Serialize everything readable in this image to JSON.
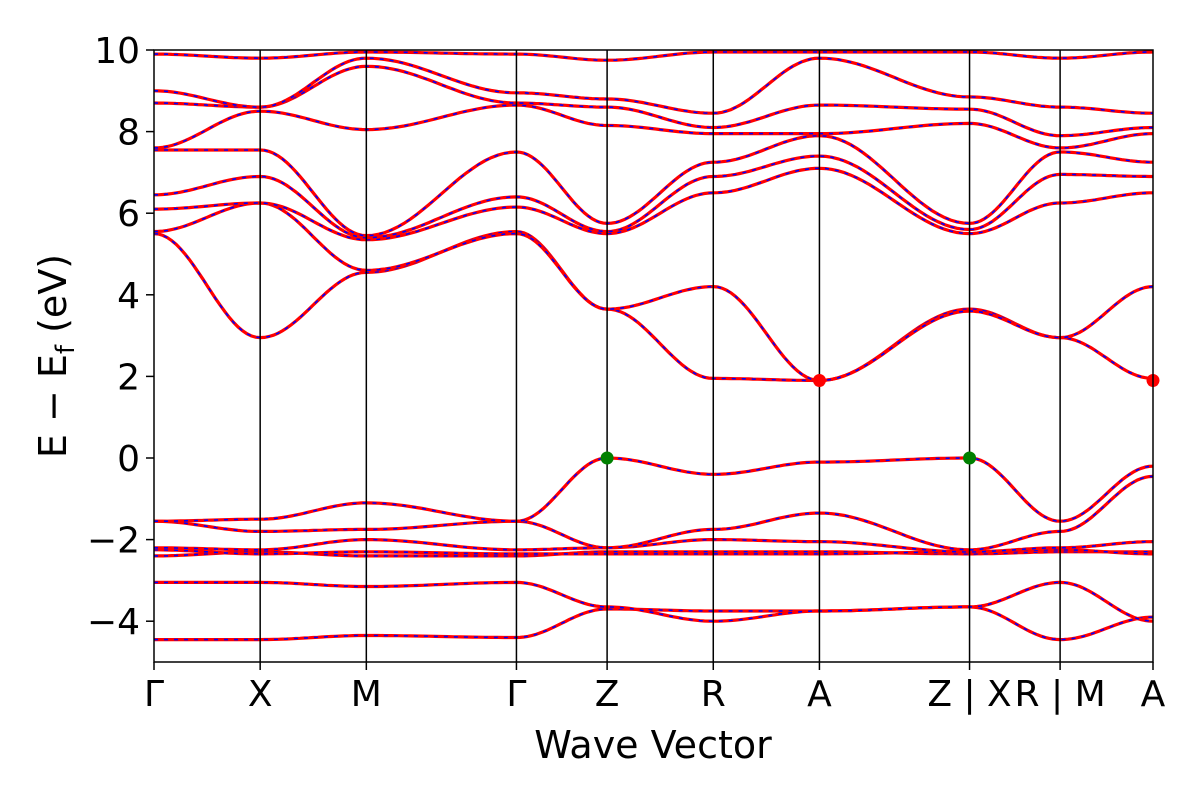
{
  "chart_data": {
    "type": "line",
    "title": "",
    "xlabel": "Wave Vector",
    "ylabel_main": "E − E",
    "ylabel_sub": "f",
    "ylabel_tail": " (eV)",
    "ylim": [
      -5,
      10
    ],
    "yticks": [
      -4,
      -2,
      0,
      2,
      4,
      6,
      8,
      10
    ],
    "ytick_labels": [
      "−4",
      "−2",
      "0",
      "2",
      "4",
      "6",
      "8",
      "10"
    ],
    "kpath": [
      {
        "label": "Γ",
        "pos": 0.0
      },
      {
        "label": "X",
        "pos": 1.0
      },
      {
        "label": "M",
        "pos": 2.0
      },
      {
        "label": "Γ",
        "pos": 3.414
      },
      {
        "label": "Z",
        "pos": 4.268
      },
      {
        "label": "R",
        "pos": 5.268
      },
      {
        "label": "A",
        "pos": 6.268
      },
      {
        "label": "Z | X",
        "pos": 7.682
      },
      {
        "label": "R | M",
        "pos": 8.535
      },
      {
        "label": "A",
        "pos": 9.41
      }
    ],
    "grid": false,
    "colors": {
      "band": "#ff0000",
      "band_dash": "#0000ff",
      "vbm": "#008000",
      "cbm": "#ff0000",
      "axis": "#000000"
    },
    "markers": [
      {
        "name": "VBM",
        "x": 4.268,
        "y": 0.0,
        "color": "#008000"
      },
      {
        "name": "VBM",
        "x": 7.682,
        "y": 0.0,
        "color": "#008000"
      },
      {
        "name": "CBM",
        "x": 6.268,
        "y": 1.9,
        "color": "#ff0000"
      },
      {
        "name": "CBM",
        "x": 9.41,
        "y": 1.9,
        "color": "#ff0000"
      }
    ],
    "segment_ends": [
      1.0,
      2.0,
      3.414,
      4.268,
      5.268,
      6.268,
      7.682,
      8.535,
      9.41
    ],
    "bands": [
      [
        -4.45,
        -4.45,
        -4.35,
        -4.4,
        -3.7,
        -3.75,
        -3.75,
        -3.65,
        -4.45,
        -3.9,
        -4.35,
        -3.75
      ],
      [
        -3.05,
        -3.05,
        -3.15,
        -3.05,
        -3.65,
        -4.0,
        -3.75,
        -3.65,
        -3.05,
        -4.0,
        -3.15,
        -3.75
      ],
      [
        -2.4,
        -2.3,
        -2.4,
        -2.4,
        -2.3,
        -2.3,
        -2.3,
        -2.35,
        -2.3,
        -2.3,
        -2.3,
        -2.3
      ],
      [
        -2.25,
        -2.35,
        -2.3,
        -2.35,
        -2.35,
        -2.35,
        -2.35,
        -2.3,
        -2.25,
        -2.35,
        -2.35,
        -2.35
      ],
      [
        -2.2,
        -2.25,
        -2.0,
        -2.25,
        -2.2,
        -2.0,
        -2.05,
        -2.3,
        -2.2,
        -2.05,
        -2.05,
        -2.05
      ],
      [
        -1.55,
        -1.8,
        -1.75,
        -1.55,
        -2.2,
        -1.75,
        -1.35,
        -2.25,
        -1.8,
        -0.45,
        -1.1,
        -1.35
      ],
      [
        -1.55,
        -1.5,
        -1.1,
        -1.55,
        0.0,
        -0.4,
        -0.1,
        0.0,
        -1.55,
        -0.2,
        -0.05,
        -0.1
      ],
      [
        5.5,
        2.95,
        4.55,
        5.55,
        3.65,
        1.95,
        1.9,
        3.65,
        2.95,
        1.95,
        4.55,
        1.9
      ],
      [
        5.55,
        6.25,
        4.6,
        5.5,
        3.65,
        4.2,
        1.9,
        3.6,
        2.95,
        4.2,
        4.55,
        1.9
      ],
      [
        6.1,
        6.25,
        5.35,
        6.15,
        5.5,
        6.5,
        7.1,
        5.5,
        6.25,
        6.5,
        5.3,
        7.1
      ],
      [
        6.45,
        6.9,
        5.4,
        6.4,
        5.55,
        6.9,
        7.4,
        5.6,
        6.95,
        6.9,
        5.4,
        7.4
      ],
      [
        7.55,
        7.55,
        5.45,
        7.5,
        5.75,
        7.25,
        7.9,
        5.75,
        7.5,
        7.25,
        7.9,
        7.9
      ],
      [
        7.6,
        8.5,
        8.05,
        8.65,
        8.15,
        7.95,
        7.95,
        8.2,
        7.6,
        7.95,
        8.05,
        7.95
      ],
      [
        8.7,
        8.6,
        9.6,
        8.7,
        8.6,
        8.1,
        8.65,
        8.55,
        7.9,
        8.1,
        9.6,
        8.65
      ],
      [
        9.0,
        8.6,
        9.8,
        8.95,
        8.8,
        8.45,
        9.8,
        8.85,
        8.6,
        8.45,
        9.8,
        9.7
      ],
      [
        9.9,
        9.8,
        9.95,
        9.9,
        9.75,
        9.95,
        9.95,
        9.95,
        9.8,
        9.95,
        9.95,
        9.95
      ]
    ]
  }
}
